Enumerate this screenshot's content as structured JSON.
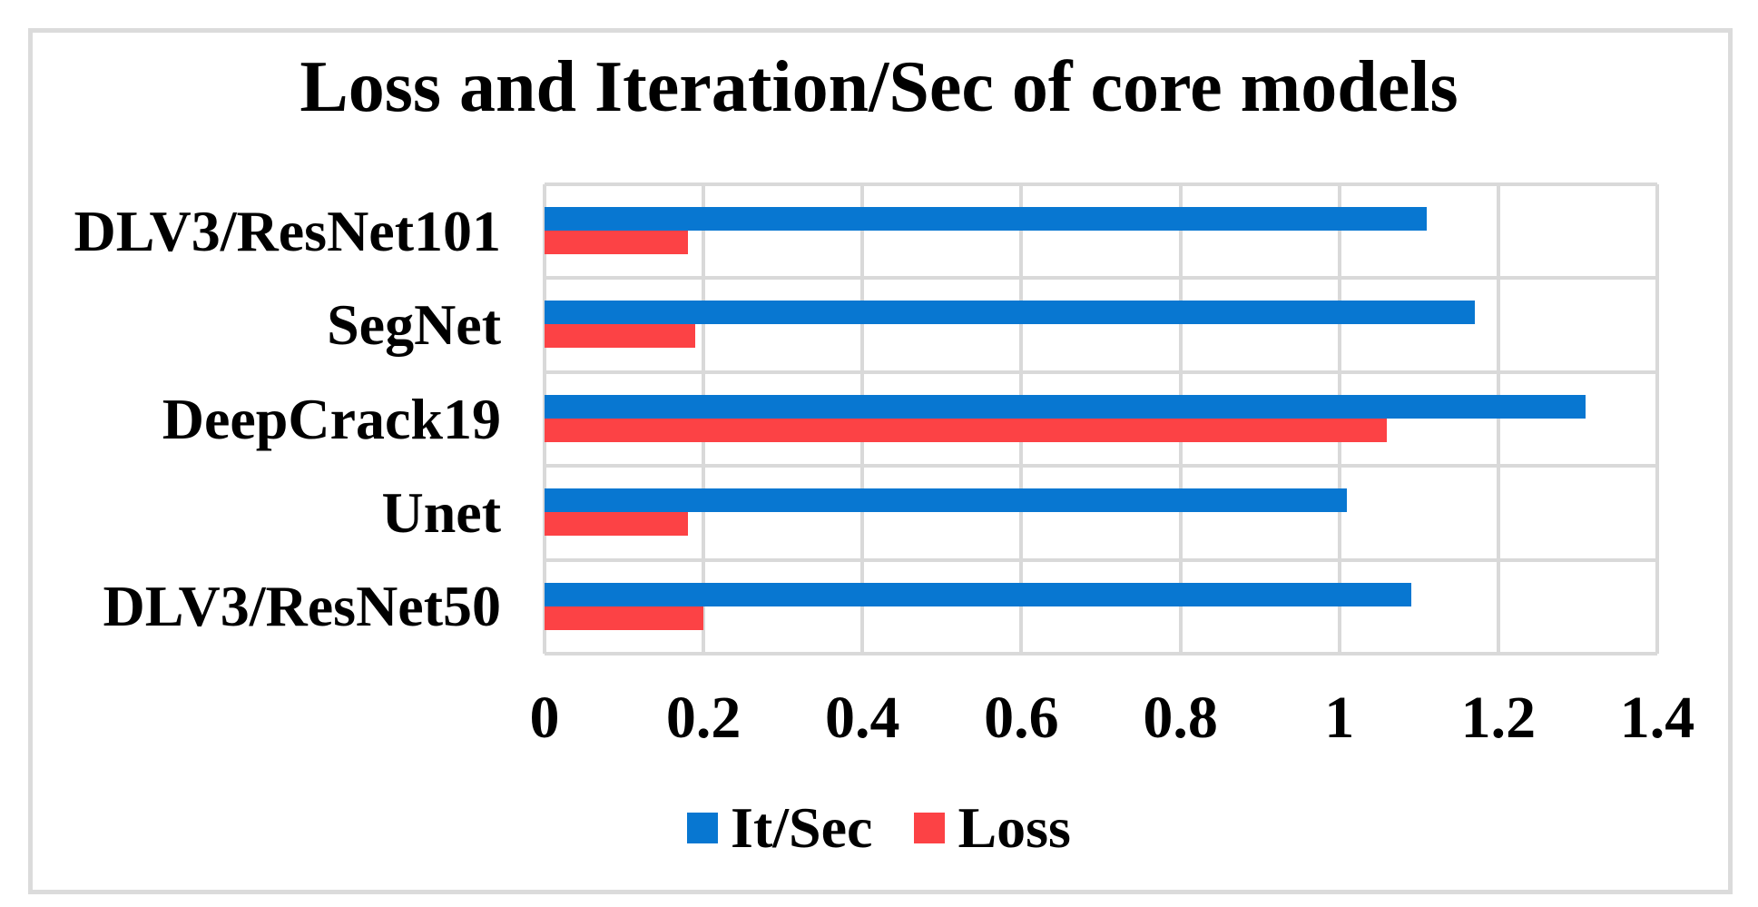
{
  "chart_data": {
    "type": "bar",
    "orientation": "horizontal",
    "title": "Loss and Iteration/Sec of core models",
    "categories": [
      "DLV3/ResNet101",
      "SegNet",
      "DeepCrack19",
      "Unet",
      "DLV3/ResNet50"
    ],
    "series": [
      {
        "name": "It/Sec",
        "color": "#0877D1",
        "values": [
          1.11,
          1.17,
          1.31,
          1.01,
          1.09
        ]
      },
      {
        "name": "Loss",
        "color": "#FC4245",
        "values": [
          0.18,
          0.19,
          1.06,
          0.18,
          0.2
        ]
      }
    ],
    "xlim": [
      0,
      1.4
    ],
    "xticks": [
      "0",
      "0.2",
      "0.4",
      "0.6",
      "0.8",
      "1",
      "1.2",
      "1.4"
    ],
    "grid": true,
    "legend_position": "bottom",
    "gridline_color": "#D9D9D9",
    "frame_border_color": "#DBDBDB",
    "text_color": "#000000"
  }
}
